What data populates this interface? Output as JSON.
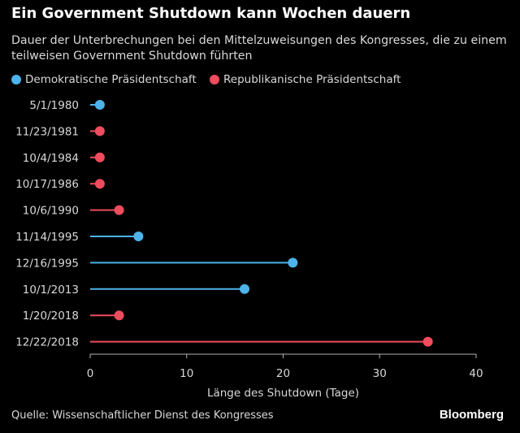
{
  "title": "Ein Government Shutdown kann Wochen dauern",
  "subtitle": "Dauer der Unterbrechungen bei den Mittelzuweisungen des Kongresses, die zu einem teilweisen Government Shutdown führten",
  "legend": [
    {
      "label": "Demokratische Präsidentschaft",
      "color": "#4db3ea"
    },
    {
      "label": "Republikanische Präsidentschaft",
      "color": "#ef4c5e"
    }
  ],
  "source": "Quelle: Wissenschaftlicher Dienst des Kongresses",
  "brand": "Bloomberg",
  "chart_data": {
    "type": "lollipop",
    "xlabel": "Länge des Shutdown (Tage)",
    "xlim": [
      0,
      40
    ],
    "xticks": [
      0,
      10,
      20,
      30,
      40
    ],
    "categories": [
      "5/1/1980",
      "11/23/1981",
      "10/4/1984",
      "10/17/1986",
      "10/6/1990",
      "11/14/1995",
      "12/16/1995",
      "10/1/2013",
      "1/20/2018",
      "12/22/2018"
    ],
    "values": [
      1,
      1,
      1,
      1,
      3,
      5,
      21,
      16,
      3,
      35
    ],
    "party": [
      "Demokratische Präsidentschaft",
      "Republikanische Präsidentschaft",
      "Republikanische Präsidentschaft",
      "Republikanische Präsidentschaft",
      "Republikanische Präsidentschaft",
      "Demokratische Präsidentschaft",
      "Demokratische Präsidentschaft",
      "Demokratische Präsidentschaft",
      "Republikanische Präsidentschaft",
      "Republikanische Präsidentschaft"
    ]
  }
}
